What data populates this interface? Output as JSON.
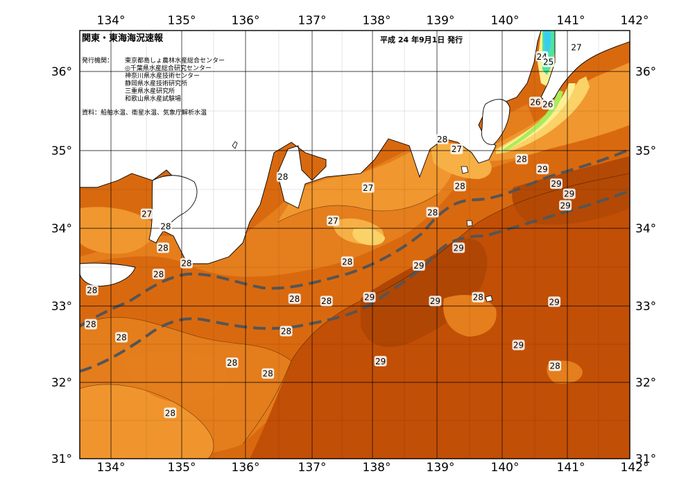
{
  "header": {
    "title": "関東・東海海況速報",
    "issued": "平成 24 年9月1日 発行"
  },
  "issuers": {
    "label": "発行機関：",
    "orgs": [
      "東京都島しょ農林水産総合センター",
      "◎千葉県水産総合研究センター",
      "神奈川県水産技術センター",
      "静岡県水産技術研究所",
      "三重県水産研究所",
      "和歌山県水産試験場"
    ]
  },
  "source": "資料：船舶水温、衛星水温、気象庁解析水温",
  "axes": {
    "lon_ticks": [
      "134°",
      "135°",
      "136°",
      "137°",
      "138°",
      "139°",
      "140°",
      "141°",
      "142°"
    ],
    "lat_ticks": [
      "36°",
      "35°",
      "34°",
      "33°",
      "32°",
      "31°"
    ]
  },
  "colors": {
    "t29": "#c24f06",
    "t28": "#d9690f",
    "t28b": "#e57e1d",
    "t27": "#f0972f",
    "t27b": "#f6b045",
    "t26": "#fbd267",
    "t25": "#fdef93",
    "t24": "#a9ec5c",
    "t23": "#4ee39c",
    "t22": "#38cdf0",
    "land": "#ffffff",
    "front": "#555555"
  },
  "isotherm_labels": [
    {
      "text": "27",
      "lon": 141.18,
      "lat": 36.33
    },
    {
      "text": "24",
      "lon": 140.65,
      "lat": 36.21
    },
    {
      "text": "25",
      "lon": 140.75,
      "lat": 36.14
    },
    {
      "text": "26",
      "lon": 140.55,
      "lat": 35.62
    },
    {
      "text": "26",
      "lon": 140.74,
      "lat": 35.59
    },
    {
      "text": "28",
      "lon": 139.12,
      "lat": 35.14
    },
    {
      "text": "27",
      "lon": 139.34,
      "lat": 35.01
    },
    {
      "text": "28",
      "lon": 136.67,
      "lat": 34.65
    },
    {
      "text": "28",
      "lon": 140.34,
      "lat": 34.88
    },
    {
      "text": "29",
      "lon": 140.66,
      "lat": 34.75
    },
    {
      "text": "27",
      "lon": 137.98,
      "lat": 34.51
    },
    {
      "text": "28",
      "lon": 139.39,
      "lat": 34.53
    },
    {
      "text": "29",
      "lon": 140.87,
      "lat": 34.56
    },
    {
      "text": "29",
      "lon": 141.07,
      "lat": 34.43
    },
    {
      "text": "27",
      "lon": 134.58,
      "lat": 34.17
    },
    {
      "text": "28",
      "lon": 134.87,
      "lat": 34.01
    },
    {
      "text": "29",
      "lon": 141.01,
      "lat": 34.28
    },
    {
      "text": "28",
      "lon": 138.97,
      "lat": 34.19
    },
    {
      "text": "27",
      "lon": 137.44,
      "lat": 34.08
    },
    {
      "text": "28",
      "lon": 134.83,
      "lat": 33.73
    },
    {
      "text": "29",
      "lon": 139.37,
      "lat": 33.73
    },
    {
      "text": "28",
      "lon": 135.19,
      "lat": 33.53
    },
    {
      "text": "28",
      "lon": 137.66,
      "lat": 33.55
    },
    {
      "text": "29",
      "lon": 138.76,
      "lat": 33.5
    },
    {
      "text": "28",
      "lon": 134.76,
      "lat": 33.39
    },
    {
      "text": "28",
      "lon": 133.74,
      "lat": 33.18
    },
    {
      "text": "28",
      "lon": 136.85,
      "lat": 33.07
    },
    {
      "text": "28",
      "lon": 137.34,
      "lat": 33.04
    },
    {
      "text": "29",
      "lon": 138.0,
      "lat": 33.09
    },
    {
      "text": "29",
      "lon": 139.01,
      "lat": 33.04
    },
    {
      "text": "28",
      "lon": 139.67,
      "lat": 33.09
    },
    {
      "text": "29",
      "lon": 140.84,
      "lat": 33.03
    },
    {
      "text": "28",
      "lon": 133.72,
      "lat": 32.74
    },
    {
      "text": "28",
      "lon": 136.72,
      "lat": 32.65
    },
    {
      "text": "28",
      "lon": 134.19,
      "lat": 32.57
    },
    {
      "text": "29",
      "lon": 140.29,
      "lat": 32.47
    },
    {
      "text": "28",
      "lon": 135.89,
      "lat": 32.24
    },
    {
      "text": "29",
      "lon": 138.17,
      "lat": 32.26
    },
    {
      "text": "28",
      "lon": 140.85,
      "lat": 32.2
    },
    {
      "text": "28",
      "lon": 136.44,
      "lat": 32.1
    },
    {
      "text": "28",
      "lon": 134.94,
      "lat": 31.59
    }
  ]
}
